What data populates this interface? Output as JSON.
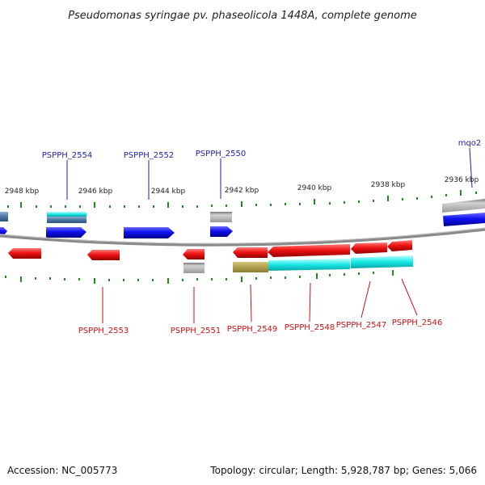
{
  "title": "Pseudomonas syringae pv. phaseolicola 1448A, complete genome",
  "accession_label": "Accession: NC_005773",
  "topology_label": "Topology: circular; Length: 5,928,787 bp; Genes: 5,066",
  "ruler_labels": [
    "2948 kbp",
    "2946 kbp",
    "2944 kbp",
    "2942 kbp",
    "2940 kbp",
    "2938 kbp",
    "2936 kbp"
  ],
  "top_genes": [
    "PSPPH_2554",
    "PSPPH_2552",
    "PSPPH_2550",
    "mqo2"
  ],
  "bottom_genes": [
    "PSPPH_2553",
    "PSPPH_2551",
    "PSPPH_2549",
    "PSPPH_2548",
    "PSPPH_2547",
    "PSPPH_2546"
  ],
  "colors": {
    "forward_gene": "#0a0ae6",
    "reverse_gene": "#e60a0a",
    "top_label": "#1e1ea8",
    "bottom_label": "#cc1111",
    "tick": "#1f8a1f",
    "backbone": "#888888",
    "feature_cyan": "#19e6e6",
    "feature_gray": "#b4b4b4",
    "feature_olive": "#b0a050"
  }
}
